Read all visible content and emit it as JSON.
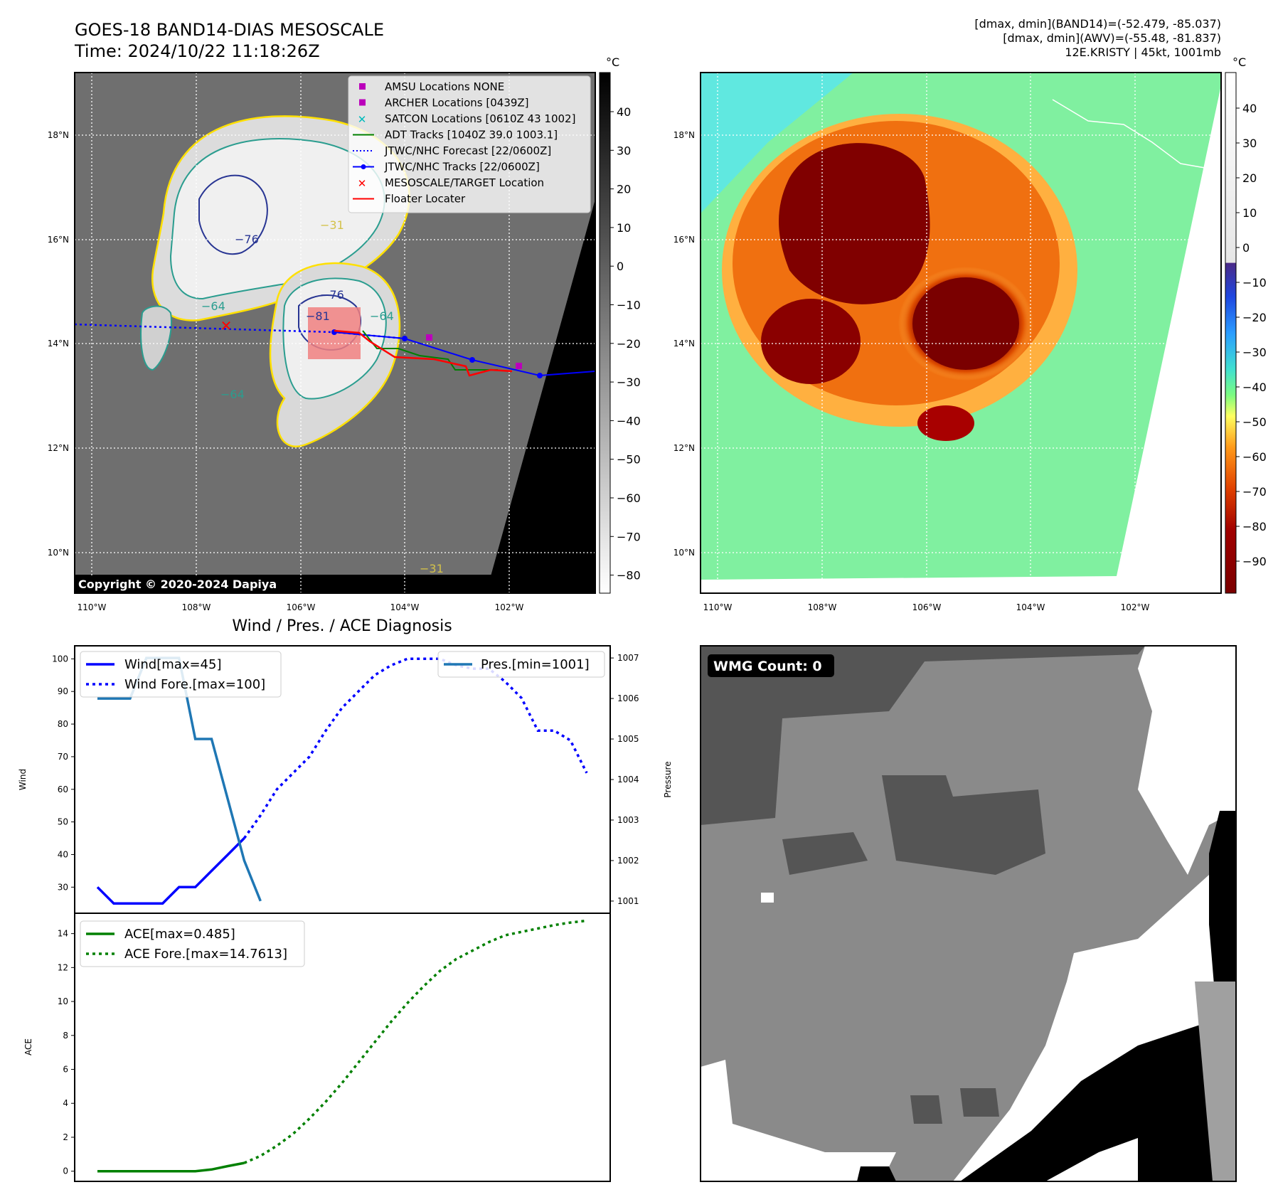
{
  "header": {
    "title_line1": "GOES-18 BAND14-DIAS MESOSCALE",
    "title_line2": "Time: 2024/10/22 11:18:26Z",
    "stats_line1": "[dmax, dmin](BAND14)=(-52.479, -85.037)",
    "stats_line2": "[dmax, dmin](AWV)=(-55.48, -81.837)",
    "stats_line3": "12E.KRISTY | 45kt, 1001mb"
  },
  "colorbar_unit": "°C",
  "ir_panel": {
    "copyright": "Copyright © 2020-2024 Dapiya",
    "colorbar_ticks": [
      "40",
      "30",
      "20",
      "10",
      "0",
      "−10",
      "−20",
      "−30",
      "−40",
      "−50",
      "−60",
      "−70",
      "−80"
    ],
    "contour_labels": [
      "−31",
      "−64",
      "−76",
      "−76",
      "−81",
      "−64",
      "−64",
      "−31"
    ],
    "legend": [
      {
        "label": "AMSU Locations NONE",
        "marker": "square",
        "color": "#bb00bb"
      },
      {
        "label": "ARCHER Locations [0439Z]",
        "marker": "square",
        "color": "#bb00bb"
      },
      {
        "label": "SATCON Locations [0610Z 43 1002]",
        "marker": "x",
        "color": "#00bbbb"
      },
      {
        "label": "ADT Tracks [1040Z 39.0 1003.1]",
        "marker": "line",
        "color": "#008000"
      },
      {
        "label": "JTWC/NHC Forecast [22/0600Z]",
        "marker": "dotted",
        "color": "#0000ff"
      },
      {
        "label": "JTWC/NHC Tracks [22/0600Z]",
        "marker": "line-dot",
        "color": "#0000ff"
      },
      {
        "label": "MESOSCALE/TARGET Location",
        "marker": "x",
        "color": "#ff0000"
      },
      {
        "label": "Floater Locater",
        "marker": "line",
        "color": "#ff0000"
      }
    ]
  },
  "map_axes": {
    "lon_labels": [
      "110°W",
      "108°W",
      "106°W",
      "104°W",
      "102°W"
    ],
    "lat_labels": [
      "18°N",
      "16°N",
      "14°N",
      "12°N",
      "10°N"
    ]
  },
  "awv_panel": {
    "colorbar_ticks": [
      "40",
      "30",
      "20",
      "10",
      "0",
      "−10",
      "−20",
      "−30",
      "−40",
      "−50",
      "−60",
      "−70",
      "−80",
      "−90"
    ]
  },
  "diag_title": "Wind / Pres. / ACE Diagnosis",
  "wmg_label": "WMG Count: 0",
  "colors": {
    "wind": "#0000ff",
    "pressure": "#1f77b4",
    "ace": "#008000",
    "floater": "#ff0000"
  },
  "chart_data": [
    {
      "type": "line",
      "title": "Wind / Pres. / ACE Diagnosis",
      "ylabel": "Wind",
      "y2label": "Pressure",
      "ylim": [
        22,
        104
      ],
      "y2lim": [
        1000.7,
        1007.3
      ],
      "yticks": [
        30,
        40,
        50,
        60,
        70,
        80,
        90,
        100
      ],
      "y2ticks": [
        1001,
        1002,
        1003,
        1004,
        1005,
        1006,
        1007
      ],
      "x": [
        0,
        1,
        2,
        3,
        4,
        5,
        6,
        7,
        8,
        9,
        10,
        11,
        12,
        13,
        14,
        15,
        16,
        17,
        18,
        19,
        20,
        21,
        22,
        23,
        24,
        25,
        26,
        27,
        28,
        29,
        30
      ],
      "series": [
        {
          "name": "Wind[max=45]",
          "axis": "left",
          "style": "solid",
          "color": "#0000ff",
          "x": [
            0,
            1,
            2,
            3,
            4,
            5,
            6,
            7,
            8,
            9
          ],
          "values": [
            30,
            25,
            25,
            25,
            25,
            30,
            30,
            35,
            40,
            45
          ]
        },
        {
          "name": "Wind Fore.[max=100]",
          "axis": "left",
          "style": "dotted",
          "color": "#0000ff",
          "x": [
            9,
            10,
            11,
            12,
            13,
            14,
            15,
            16,
            17,
            18,
            19,
            20,
            21,
            22,
            23,
            24,
            25,
            26,
            27,
            28,
            29,
            30
          ],
          "values": [
            45,
            52,
            60,
            65,
            70,
            78,
            85,
            90,
            95,
            98,
            100,
            100,
            100,
            98,
            97,
            97,
            93,
            88,
            78,
            78,
            75,
            65
          ]
        },
        {
          "name": "Pres.[min=1001]",
          "axis": "right",
          "style": "solid",
          "color": "#1f77b4",
          "x": [
            0,
            1,
            2,
            3,
            4,
            5,
            6,
            7,
            8,
            9,
            10
          ],
          "values": [
            1006,
            1006,
            1006,
            1007,
            1007,
            1007,
            1005,
            1005,
            1003.5,
            1002,
            1001
          ]
        }
      ]
    },
    {
      "type": "line",
      "ylabel": "ACE",
      "ylim": [
        -0.6,
        15.2
      ],
      "yticks": [
        0,
        2,
        4,
        6,
        8,
        10,
        12,
        14
      ],
      "series": [
        {
          "name": "ACE[max=0.485]",
          "style": "solid",
          "color": "#008000",
          "x": [
            0,
            1,
            2,
            3,
            4,
            5,
            6,
            7,
            8,
            9
          ],
          "values": [
            0,
            0,
            0,
            0,
            0,
            0,
            0,
            0.1,
            0.3,
            0.485
          ]
        },
        {
          "name": "ACE Fore.[max=14.7613]",
          "style": "dotted",
          "color": "#008000",
          "x": [
            9,
            10,
            11,
            12,
            13,
            14,
            15,
            16,
            17,
            18,
            19,
            20,
            21,
            22,
            23,
            24,
            25,
            26,
            27,
            28,
            29,
            30
          ],
          "values": [
            0.485,
            0.9,
            1.5,
            2.2,
            3.1,
            4.1,
            5.2,
            6.4,
            7.6,
            8.8,
            9.9,
            10.9,
            11.8,
            12.5,
            13.0,
            13.5,
            13.9,
            14.1,
            14.3,
            14.5,
            14.65,
            14.7613
          ]
        }
      ]
    }
  ]
}
